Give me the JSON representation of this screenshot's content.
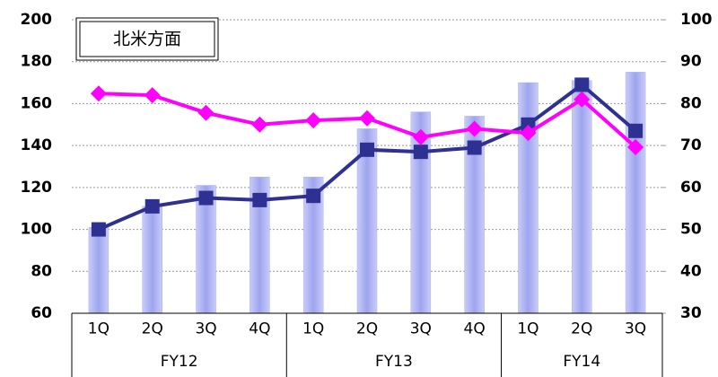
{
  "chart_data": {
    "type": "bar-line",
    "title": "北米方面",
    "categories": [
      "1Q",
      "2Q",
      "3Q",
      "4Q",
      "1Q",
      "2Q",
      "3Q",
      "4Q",
      "1Q",
      "2Q",
      "3Q"
    ],
    "groups": [
      {
        "name": "FY12",
        "count": 4
      },
      {
        "name": "FY13",
        "count": 4
      },
      {
        "name": "FY14",
        "count": 3
      }
    ],
    "series": [
      {
        "type": "bar",
        "color": "#aab0f2",
        "values": [
          101,
          111,
          121,
          125,
          125,
          148,
          156,
          154,
          170,
          171,
          175
        ]
      },
      {
        "type": "line",
        "marker": "square",
        "color": "#2e3192",
        "values": [
          100,
          111,
          115,
          114,
          116,
          138,
          137,
          139,
          150,
          169,
          147
        ]
      },
      {
        "type": "line",
        "marker": "diamond",
        "color": "#ff00ff",
        "axis": "y2",
        "values": [
          82.4,
          82,
          77.8,
          75,
          76,
          76.5,
          72,
          74,
          73,
          81,
          69.6
        ]
      }
    ],
    "ylim": [
      60,
      200
    ],
    "yticks": [
      60,
      80,
      100,
      120,
      140,
      160,
      180,
      200
    ],
    "y2lim": [
      30,
      100
    ],
    "y2ticks": [
      30,
      40,
      50,
      60,
      70,
      80,
      90,
      100
    ],
    "grid": true
  }
}
